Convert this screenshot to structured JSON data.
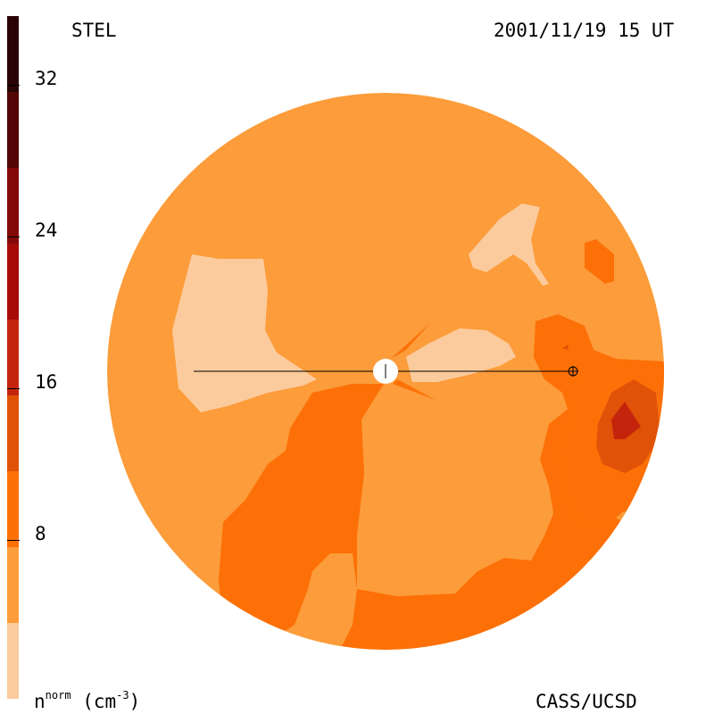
{
  "header": {
    "instrument": "STEL",
    "timestamp": "2001/11/19 15 UT"
  },
  "footer": {
    "unit_symbol": "n",
    "unit_superscript": "norm",
    "unit_open": " (cm",
    "unit_exponent": "-3",
    "unit_close": ")",
    "credit": "CASS/UCSD"
  },
  "colorbar": {
    "ticks": [
      "8",
      "16",
      "24",
      "32"
    ],
    "tick_values": [
      8,
      16,
      24,
      32
    ],
    "range": [
      0,
      36
    ],
    "bands": [
      {
        "from": 0,
        "to": 4,
        "color": "#fccb9d"
      },
      {
        "from": 4,
        "to": 8,
        "color": "#fc9c3a"
      },
      {
        "from": 8,
        "to": 12,
        "color": "#fc7007"
      },
      {
        "from": 12,
        "to": 16,
        "color": "#e05208"
      },
      {
        "from": 16,
        "to": 20,
        "color": "#c4240c"
      },
      {
        "from": 20,
        "to": 24,
        "color": "#a60b08"
      },
      {
        "from": 24,
        "to": 28,
        "color": "#840808"
      },
      {
        "from": 28,
        "to": 32,
        "color": "#520606"
      },
      {
        "from": 32,
        "to": 36,
        "color": "#2a0404"
      }
    ]
  },
  "colors": {
    "background": "#fc9c3a",
    "low": "#fccb9d",
    "high": "#fc7007",
    "higher": "#e05208",
    "peak": "#c4240c"
  },
  "markers": {
    "sun": "sun-marker",
    "earth": "earth-symbol"
  }
}
